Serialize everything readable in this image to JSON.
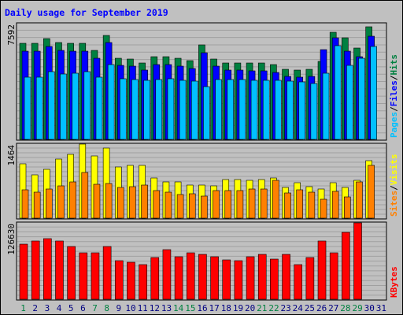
{
  "title": "Daily usage for September 2019",
  "colors": {
    "background": "#c0c0c0",
    "panel": "#c0c0c0",
    "grid": "#a0a0a0",
    "hits": "#008040",
    "files": "#0000ff",
    "pages": "#00c0ff",
    "visits": "#ffff00",
    "sites": "#ff8000",
    "kbytes": "#ff0000",
    "title": "#0000ff",
    "weekend_label": "#008040",
    "weekday_label": "#000080",
    "separator": "#000000"
  },
  "chart_data": [
    {
      "type": "bar",
      "panel": "hits-files-pages",
      "scale_label": "7592",
      "ylim": [
        0,
        7592
      ],
      "right_labels": [
        "Hits",
        "Files",
        "Pages"
      ],
      "x": [
        1,
        2,
        3,
        4,
        5,
        6,
        7,
        8,
        9,
        10,
        11,
        12,
        13,
        14,
        15,
        16,
        17,
        18,
        19,
        20,
        21,
        22,
        23,
        24,
        25,
        26,
        27,
        28,
        29,
        30,
        31
      ],
      "weekend_days": [
        1,
        7,
        8,
        14,
        15,
        21,
        22,
        28,
        29
      ],
      "series": [
        {
          "name": "Hits",
          "color": "#008040",
          "values": [
            6280,
            6280,
            6590,
            6340,
            6280,
            6280,
            5820,
            6840,
            5340,
            5270,
            5030,
            5400,
            5400,
            5320,
            5150,
            6200,
            5270,
            5030,
            5030,
            4990,
            4990,
            4900,
            4620,
            4540,
            4600,
            5100,
            7010,
            6640,
            6000,
            7400,
            0
          ]
        },
        {
          "name": "Files",
          "color": "#0000ff",
          "values": [
            5770,
            5770,
            6080,
            5840,
            5770,
            5770,
            5300,
            6350,
            4870,
            4790,
            4560,
            4900,
            4900,
            4800,
            4640,
            5700,
            4790,
            4560,
            4560,
            4480,
            4480,
            4390,
            4140,
            4080,
            4150,
            5900,
            6660,
            5800,
            5400,
            6760,
            0
          ]
        },
        {
          "name": "Pages",
          "color": "#00c0ff",
          "values": [
            4080,
            4080,
            4460,
            4280,
            4360,
            4460,
            4100,
            4910,
            4000,
            3950,
            3890,
            3920,
            3960,
            3890,
            3810,
            3440,
            3950,
            3920,
            3920,
            3880,
            3890,
            3860,
            3800,
            3770,
            3670,
            4350,
            6160,
            4880,
            5300,
            6100,
            0
          ]
        }
      ]
    },
    {
      "type": "bar",
      "panel": "visits-sites",
      "scale_label": "1464",
      "ylim": [
        0,
        1464
      ],
      "right_labels": [
        "Visits",
        "Sites"
      ],
      "x": [
        1,
        2,
        3,
        4,
        5,
        6,
        7,
        8,
        9,
        10,
        11,
        12,
        13,
        14,
        15,
        16,
        17,
        18,
        19,
        20,
        21,
        22,
        23,
        24,
        25,
        26,
        27,
        28,
        29,
        30,
        31
      ],
      "series": [
        {
          "name": "Visits",
          "color": "#ffff00",
          "values": [
            1080,
            860,
            970,
            1170,
            1260,
            1464,
            1230,
            1390,
            1020,
            1040,
            1040,
            790,
            720,
            720,
            660,
            650,
            640,
            760,
            760,
            740,
            760,
            790,
            600,
            700,
            620,
            580,
            700,
            600,
            740,
            1140,
            0
          ]
        },
        {
          "name": "Sites",
          "color": "#ff8000",
          "values": [
            560,
            510,
            580,
            640,
            720,
            900,
            670,
            680,
            600,
            620,
            650,
            550,
            510,
            470,
            480,
            440,
            540,
            540,
            540,
            570,
            570,
            750,
            500,
            560,
            520,
            380,
            530,
            420,
            710,
            1040,
            0
          ]
        }
      ]
    },
    {
      "type": "bar",
      "panel": "kbytes",
      "scale_label": "126630",
      "ylim": [
        0,
        126630
      ],
      "right_labels": [
        "KBytes"
      ],
      "x": [
        1,
        2,
        3,
        4,
        5,
        6,
        7,
        8,
        9,
        10,
        11,
        12,
        13,
        14,
        15,
        16,
        17,
        18,
        19,
        20,
        21,
        22,
        23,
        24,
        25,
        26,
        27,
        28,
        29,
        30,
        31
      ],
      "series": [
        {
          "name": "KBytes",
          "color": "#ff0000",
          "values": [
            92000,
            96000,
            100000,
            97000,
            88000,
            77000,
            77000,
            87000,
            64000,
            61000,
            57000,
            69000,
            82000,
            70000,
            77000,
            75000,
            71000,
            65000,
            64000,
            71000,
            75000,
            66000,
            75000,
            57000,
            69000,
            97000,
            77000,
            111000,
            126630,
            0,
            0
          ]
        }
      ]
    }
  ]
}
